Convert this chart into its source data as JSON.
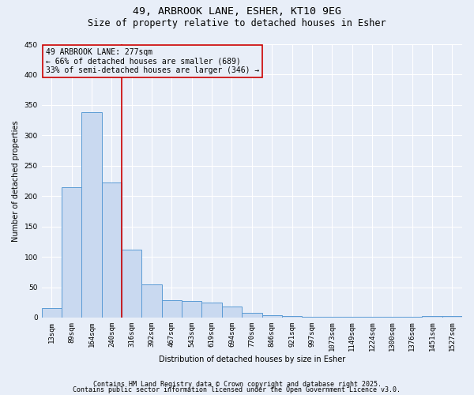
{
  "title1": "49, ARBROOK LANE, ESHER, KT10 9EG",
  "title2": "Size of property relative to detached houses in Esher",
  "xlabel": "Distribution of detached houses by size in Esher",
  "ylabel": "Number of detached properties",
  "bar_labels": [
    "13sqm",
    "89sqm",
    "164sqm",
    "240sqm",
    "316sqm",
    "392sqm",
    "467sqm",
    "543sqm",
    "619sqm",
    "694sqm",
    "770sqm",
    "846sqm",
    "921sqm",
    "997sqm",
    "1073sqm",
    "1149sqm",
    "1224sqm",
    "1300sqm",
    "1376sqm",
    "1451sqm",
    "1527sqm"
  ],
  "bar_values": [
    15,
    215,
    338,
    222,
    112,
    55,
    28,
    27,
    25,
    18,
    8,
    4,
    3,
    1,
    1,
    1,
    1,
    1,
    1,
    2,
    2
  ],
  "bar_color": "#c9d9f0",
  "bar_edgecolor": "#5b9bd5",
  "annotation_line1": "49 ARBROOK LANE: 277sqm",
  "annotation_line2": "← 66% of detached houses are smaller (689)",
  "annotation_line3": "33% of semi-detached houses are larger (346) →",
  "annotation_box_edgecolor": "#cc0000",
  "vline_x": 3.5,
  "vline_color": "#cc0000",
  "ylim": [
    0,
    450
  ],
  "yticks": [
    0,
    50,
    100,
    150,
    200,
    250,
    300,
    350,
    400,
    450
  ],
  "footer1": "Contains HM Land Registry data © Crown copyright and database right 2025.",
  "footer2": "Contains public sector information licensed under the Open Government Licence v3.0.",
  "background_color": "#e8eef8",
  "grid_color": "#ffffff",
  "title_fontsize": 9.5,
  "subtitle_fontsize": 8.5,
  "axis_label_fontsize": 7,
  "tick_fontsize": 6.5,
  "annotation_fontsize": 7,
  "footer_fontsize": 6
}
